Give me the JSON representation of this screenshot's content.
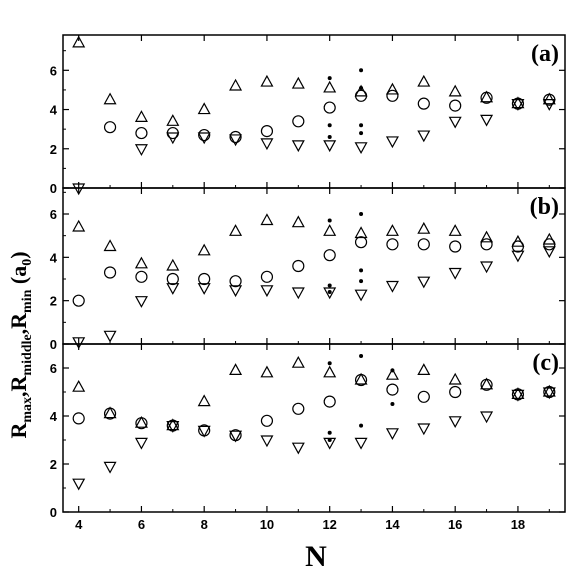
{
  "chart_data": {
    "type": "scatter",
    "xlabel": "N",
    "ylabel": {
      "r1": "R",
      "s1": "max",
      "r2": ",R",
      "s2": "middle",
      "r3": ",R",
      "s3": "min",
      "r4": " (a",
      "s4": "0",
      "r5": ")"
    },
    "x_ticks": [
      4,
      6,
      8,
      10,
      12,
      14,
      16,
      18
    ],
    "xlim": [
      3.5,
      19.5
    ],
    "colors": {
      "marker": "#000000",
      "axis": "#000000"
    },
    "panels": [
      {
        "label": "(a)",
        "ylim": [
          0,
          7.8
        ],
        "y_ticks": [
          0,
          2,
          4,
          6
        ],
        "series": [
          {
            "marker": "triangle-up",
            "x": [
              4,
              5,
              6,
              7,
              8,
              9,
              10,
              11,
              12,
              13,
              14,
              15,
              16,
              17,
              18,
              19
            ],
            "y": [
              7.4,
              4.5,
              3.6,
              3.4,
              4.0,
              5.2,
              5.4,
              5.3,
              5.1,
              4.9,
              5.0,
              5.4,
              4.9,
              4.6,
              4.3,
              4.5
            ]
          },
          {
            "marker": "circle",
            "x": [
              5,
              6,
              7,
              8,
              9,
              10,
              11,
              12,
              13,
              14,
              15,
              16,
              17,
              18,
              19
            ],
            "y": [
              3.1,
              2.8,
              2.8,
              2.7,
              2.6,
              2.9,
              3.4,
              4.1,
              4.7,
              4.7,
              4.3,
              4.2,
              4.6,
              4.3,
              4.5
            ]
          },
          {
            "marker": "triangle-down",
            "x": [
              4,
              6,
              7,
              8,
              9,
              10,
              11,
              12,
              13,
              14,
              15,
              16,
              17,
              18,
              19
            ],
            "y": [
              0.0,
              2.0,
              2.6,
              2.6,
              2.5,
              2.3,
              2.2,
              2.2,
              2.1,
              2.4,
              2.7,
              3.4,
              3.5,
              4.3,
              4.3
            ]
          },
          {
            "marker": "dot",
            "x": [
              12,
              12,
              12,
              13,
              13,
              13,
              13
            ],
            "y": [
              5.6,
              3.2,
              2.6,
              6.0,
              3.2,
              2.8,
              5.1
            ]
          }
        ]
      },
      {
        "label": "(b)",
        "ylim": [
          0,
          7.2
        ],
        "y_ticks": [
          0,
          2,
          4,
          6
        ],
        "series": [
          {
            "marker": "triangle-up",
            "x": [
              4,
              5,
              6,
              7,
              8,
              9,
              10,
              11,
              12,
              13,
              14,
              15,
              16,
              17,
              18,
              19
            ],
            "y": [
              5.4,
              4.5,
              3.7,
              3.6,
              4.3,
              5.2,
              5.7,
              5.6,
              5.2,
              5.1,
              5.2,
              5.3,
              5.2,
              4.9,
              4.7,
              4.8
            ]
          },
          {
            "marker": "circle",
            "x": [
              4,
              5,
              6,
              7,
              8,
              9,
              10,
              11,
              12,
              13,
              14,
              15,
              16,
              17,
              18,
              19
            ],
            "y": [
              2.0,
              3.3,
              3.1,
              3.0,
              3.0,
              2.9,
              3.1,
              3.6,
              4.1,
              4.7,
              4.6,
              4.6,
              4.5,
              4.6,
              4.5,
              4.6
            ]
          },
          {
            "marker": "triangle-down",
            "x": [
              4,
              5,
              6,
              7,
              8,
              9,
              10,
              11,
              12,
              13,
              14,
              15,
              16,
              17,
              18,
              19
            ],
            "y": [
              0.1,
              0.4,
              2.0,
              2.6,
              2.6,
              2.5,
              2.5,
              2.4,
              2.4,
              2.3,
              2.7,
              2.9,
              3.3,
              3.6,
              4.1,
              4.3
            ]
          },
          {
            "marker": "dot",
            "x": [
              12,
              12,
              12,
              13,
              13,
              13
            ],
            "y": [
              5.7,
              2.7,
              2.4,
              6.0,
              3.4,
              2.9
            ]
          }
        ]
      },
      {
        "label": "(c)",
        "ylim": [
          0,
          7.0
        ],
        "y_ticks": [
          0,
          2,
          4,
          6
        ],
        "series": [
          {
            "marker": "triangle-up",
            "x": [
              4,
              5,
              6,
              7,
              8,
              9,
              10,
              11,
              12,
              13,
              14,
              15,
              16,
              17,
              18,
              19
            ],
            "y": [
              5.2,
              4.1,
              3.7,
              3.6,
              4.6,
              5.9,
              5.8,
              6.2,
              5.8,
              5.5,
              5.7,
              5.9,
              5.5,
              5.3,
              4.9,
              5.0
            ]
          },
          {
            "marker": "circle",
            "x": [
              4,
              5,
              6,
              7,
              8,
              9,
              10,
              11,
              12,
              13,
              14,
              15,
              16,
              17,
              18,
              19
            ],
            "y": [
              3.9,
              4.1,
              3.7,
              3.6,
              3.4,
              3.2,
              3.8,
              4.3,
              4.6,
              5.5,
              5.1,
              4.8,
              5.0,
              5.3,
              4.9,
              5.0
            ]
          },
          {
            "marker": "triangle-down",
            "x": [
              4,
              5,
              6,
              7,
              8,
              9,
              10,
              11,
              12,
              13,
              14,
              15,
              16,
              17,
              18,
              19
            ],
            "y": [
              1.2,
              1.9,
              2.9,
              3.6,
              3.4,
              3.2,
              3.0,
              2.7,
              2.9,
              2.9,
              3.3,
              3.5,
              3.8,
              4.0,
              4.9,
              5.0
            ]
          },
          {
            "marker": "dot",
            "x": [
              12,
              12,
              12,
              13,
              13,
              14,
              14
            ],
            "y": [
              6.2,
              3.3,
              3.0,
              6.5,
              3.6,
              5.9,
              4.5
            ]
          }
        ]
      }
    ]
  }
}
